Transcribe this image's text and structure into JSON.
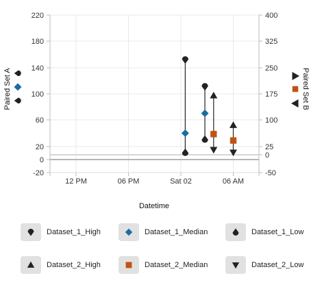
{
  "chart_data": {
    "type": "scatter",
    "subtype": "hi-lo-median",
    "title": "",
    "xlabel": "Datetime",
    "x_ticks": [
      "12 PM",
      "06 PM",
      "Sat 02",
      "06 AM"
    ],
    "y_left": {
      "label": "Paired Set A",
      "ticks": [
        -20,
        0,
        20,
        60,
        100,
        140,
        180,
        220
      ],
      "range": [
        -20,
        220
      ]
    },
    "y_right": {
      "label": "Paired Set B",
      "ticks": [
        -50,
        0,
        25,
        100,
        175,
        250,
        325,
        400
      ],
      "range": [
        -50,
        400
      ]
    },
    "series": [
      {
        "name": "Dataset_1_High",
        "axis": "left",
        "marker": "drop-down",
        "color": "#222222",
        "points": [
          {
            "x": "Sat 02 00:30",
            "y": 152
          },
          {
            "x": "Sat 02 02:45",
            "y": 111
          }
        ]
      },
      {
        "name": "Dataset_1_Median",
        "axis": "left",
        "marker": "diamond",
        "color": "#1b6ca1",
        "points": [
          {
            "x": "Sat 02 00:30",
            "y": 40
          },
          {
            "x": "Sat 02 02:45",
            "y": 70
          }
        ]
      },
      {
        "name": "Dataset_1_Low",
        "axis": "left",
        "marker": "drop-up",
        "color": "#222222",
        "points": [
          {
            "x": "Sat 02 00:30",
            "y": 11
          },
          {
            "x": "Sat 02 02:45",
            "y": 31
          }
        ]
      },
      {
        "name": "Dataset_2_High",
        "axis": "right",
        "marker": "triangle-up",
        "color": "#222222",
        "points": [
          {
            "x": "Sat 02 03:45",
            "y": 170
          },
          {
            "x": "Sat 02 06:00",
            "y": 85
          }
        ]
      },
      {
        "name": "Dataset_2_Median",
        "axis": "right",
        "marker": "square",
        "color": "#c05312",
        "points": [
          {
            "x": "Sat 02 03:45",
            "y": 60
          },
          {
            "x": "Sat 02 06:00",
            "y": 42
          }
        ]
      },
      {
        "name": "Dataset_2_Low",
        "axis": "right",
        "marker": "triangle-down",
        "color": "#222222",
        "points": [
          {
            "x": "Sat 02 03:45",
            "y": 15
          },
          {
            "x": "Sat 02 06:00",
            "y": 7
          }
        ]
      }
    ],
    "grid": true,
    "legend_position": "bottom"
  },
  "legend": {
    "items": [
      {
        "label": "Dataset_1_High",
        "marker": "drop-down"
      },
      {
        "label": "Dataset_1_Median",
        "marker": "diamond"
      },
      {
        "label": "Dataset_1_Low",
        "marker": "drop-up"
      },
      {
        "label": "Dataset_2_High",
        "marker": "triangle-up"
      },
      {
        "label": "Dataset_2_Median",
        "marker": "square"
      },
      {
        "label": "Dataset_2_Low",
        "marker": "triangle-down"
      }
    ]
  },
  "colors": {
    "dark": "#222222",
    "median_a": "#1b6ca1",
    "median_b": "#c05312"
  }
}
